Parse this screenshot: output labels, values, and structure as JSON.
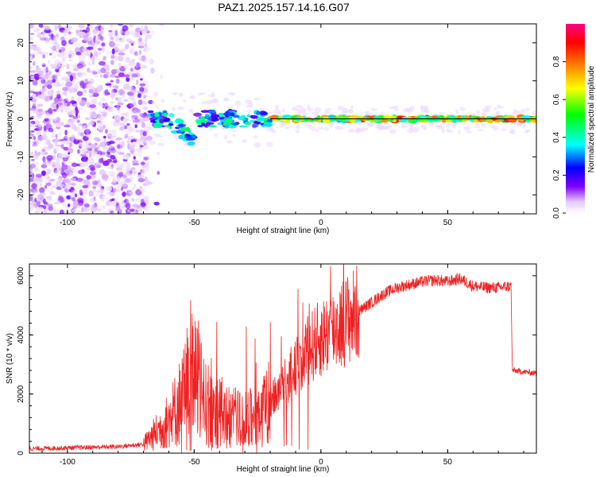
{
  "title": "PAZ1.2025.157.14.16.G07",
  "chart_data": [
    {
      "type": "heatmap",
      "xlabel": "Height of straight line (km)",
      "ylabel": "Frequency (Hz)",
      "xlim": [
        -115,
        85
      ],
      "ylim": [
        -25,
        25
      ],
      "xticks": [
        -100,
        -50,
        0,
        50
      ],
      "yticks": [
        -20,
        -10,
        0,
        10,
        20
      ],
      "colorbar": {
        "label": "Normalized spectral amplitude",
        "range": [
          0,
          1
        ],
        "ticks": [
          0.0,
          0.2,
          0.4,
          0.6,
          0.8
        ],
        "colors": [
          "#ffffff",
          "#e6c8ff",
          "#8000ff",
          "#0000ff",
          "#00ffff",
          "#00ff00",
          "#ffff00",
          "#ff8000",
          "#ff0000",
          "#ff0080"
        ]
      },
      "grid": false
    },
    {
      "type": "line",
      "xlabel": "Height of straight line (km)",
      "ylabel": "SNR (10 * v/v)",
      "xlim": [
        -115,
        85
      ],
      "ylim": [
        0,
        6400
      ],
      "xticks": [
        -100,
        -50,
        0,
        50
      ],
      "yticks": [
        0,
        2000,
        4000,
        6000
      ],
      "series": [
        {
          "color": "#ee2222",
          "x": [
            -115,
            -100,
            -80,
            -70,
            -65,
            -60,
            -55,
            -52,
            -50,
            -48,
            -45,
            -40,
            -35,
            -30,
            -25,
            -20,
            -15,
            -10,
            -5,
            0,
            5,
            10,
            15,
            20,
            25,
            30,
            35,
            40,
            45,
            50,
            55,
            60,
            65,
            70,
            75,
            75.5,
            80,
            85
          ],
          "y": [
            150,
            180,
            220,
            300,
            700,
            1100,
            1800,
            2600,
            3000,
            2200,
            1600,
            1400,
            1200,
            1100,
            1300,
            1700,
            2300,
            2900,
            3500,
            3900,
            4200,
            4500,
            4800,
            5100,
            5400,
            5600,
            5700,
            5800,
            5850,
            5800,
            5900,
            5650,
            5600,
            5600,
            5650,
            2800,
            2750,
            2700
          ]
        }
      ],
      "grid": false
    }
  ]
}
